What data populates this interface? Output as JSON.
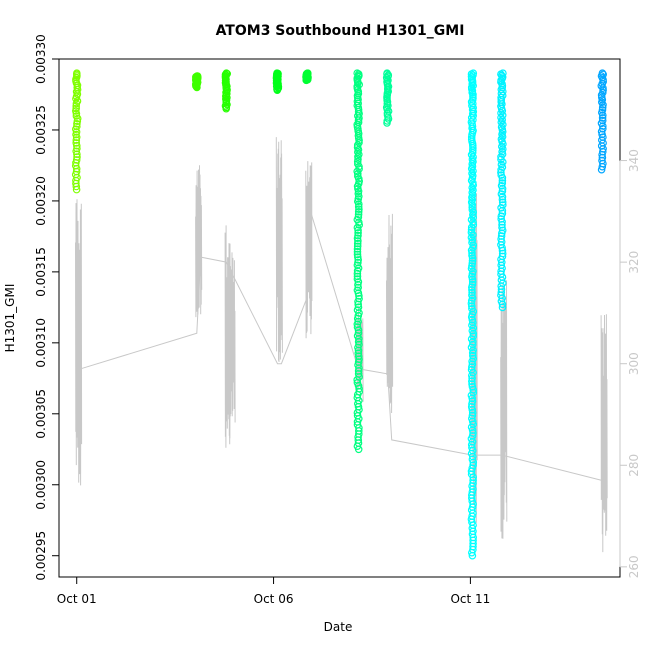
{
  "chart_data": {
    "type": "scatter",
    "title": "ATOM3 Southbound H1301_GMI",
    "xlabel": "Date",
    "ylabel": "H1301_GMI",
    "x_ticks": [
      {
        "label": "Oct 01",
        "day": 0
      },
      {
        "label": "Oct 06",
        "day": 5
      },
      {
        "label": "Oct 11",
        "day": 10
      }
    ],
    "xlim_days": [
      -0.45,
      13.8
    ],
    "ylim": [
      0.002935,
      0.0033
    ],
    "y_ticks": [
      "0.00295",
      "0.00300",
      "0.00305",
      "0.00310",
      "0.00315",
      "0.00320",
      "0.00325",
      "0.00330"
    ],
    "y2_ticks": [
      "260",
      "280",
      "300",
      "320",
      "340"
    ],
    "y2lim": [
      258,
      360
    ],
    "altitude_color": "#c8c8c8",
    "series": [
      {
        "day": 0.0,
        "y_top": 0.00329,
        "y_bottom": 0.003208,
        "color": "#7fff00"
      },
      {
        "day": 3.05,
        "y_top": 0.003288,
        "y_bottom": 0.00328,
        "color": "#3fff00"
      },
      {
        "day": 3.8,
        "y_top": 0.00329,
        "y_bottom": 0.003265,
        "color": "#26ff00"
      },
      {
        "day": 5.1,
        "y_top": 0.00329,
        "y_bottom": 0.003278,
        "color": "#00ff19"
      },
      {
        "day": 5.85,
        "y_top": 0.00329,
        "y_bottom": 0.003285,
        "color": "#00ff33"
      },
      {
        "day": 7.15,
        "y_top": 0.00329,
        "y_bottom": 0.003025,
        "color": "#00ff80"
      },
      {
        "day": 7.9,
        "y_top": 0.00329,
        "y_bottom": 0.003255,
        "color": "#00ff99"
      },
      {
        "day": 10.05,
        "y_top": 0.00329,
        "y_bottom": 0.00295,
        "color": "#00ffff"
      },
      {
        "day": 10.8,
        "y_top": 0.00329,
        "y_bottom": 0.003125,
        "color": "#00f2ff"
      },
      {
        "day": 13.35,
        "y_top": 0.00329,
        "y_bottom": 0.003222,
        "color": "#00a6ff"
      }
    ]
  }
}
